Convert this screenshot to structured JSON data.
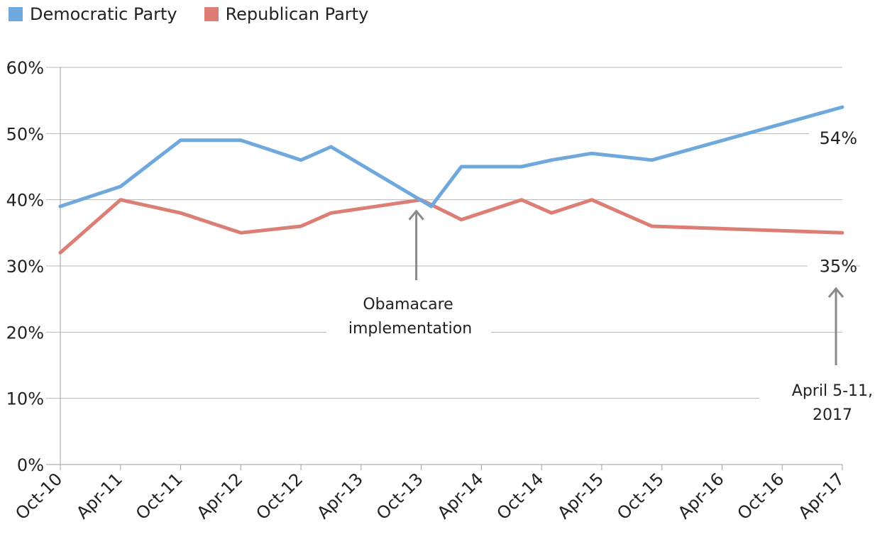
{
  "legend": {
    "items": [
      {
        "label": "Democratic Party",
        "color": "#6fa8dc"
      },
      {
        "label": "Republican Party",
        "color": "#dd7e76"
      }
    ]
  },
  "chart_data": {
    "type": "line",
    "x": [
      "Oct-10",
      "Apr-11",
      "Oct-11",
      "Apr-12",
      "Oct-12",
      "Apr-13",
      "Oct-13",
      "Apr-14",
      "Oct-14",
      "Apr-15",
      "Oct-15",
      "Apr-16",
      "Oct-16",
      "Apr-17"
    ],
    "ylim": [
      0,
      60
    ],
    "yticks": [
      "0%",
      "10%",
      "20%",
      "30%",
      "40%",
      "50%",
      "60%"
    ],
    "grid": true,
    "legend_position": "top-left",
    "series": [
      {
        "name": "Democratic Party",
        "color": "#6fa8dc",
        "points": [
          {
            "x": "Oct-10",
            "y": 39
          },
          {
            "x": "Apr-11",
            "y": 42
          },
          {
            "x": "Oct-11",
            "y": 49
          },
          {
            "x": "Apr-12",
            "y": 49
          },
          {
            "x": "Oct-12",
            "y": 46
          },
          {
            "x": "Jan-13",
            "y": 48
          },
          {
            "x": "Nov-13",
            "y": 39
          },
          {
            "x": "Feb-14",
            "y": 45
          },
          {
            "x": "Aug-14",
            "y": 45
          },
          {
            "x": "Nov-14",
            "y": 46
          },
          {
            "x": "Mar-15",
            "y": 47
          },
          {
            "x": "Sep-15",
            "y": 46
          },
          {
            "x": "Apr-17",
            "y": 54
          }
        ]
      },
      {
        "name": "Republican Party",
        "color": "#dd7e76",
        "points": [
          {
            "x": "Oct-10",
            "y": 32
          },
          {
            "x": "Apr-11",
            "y": 40
          },
          {
            "x": "Oct-11",
            "y": 38
          },
          {
            "x": "Apr-12",
            "y": 35
          },
          {
            "x": "Oct-12",
            "y": 36
          },
          {
            "x": "Jan-13",
            "y": 38
          },
          {
            "x": "Oct-13",
            "y": 40
          },
          {
            "x": "Feb-14",
            "y": 37
          },
          {
            "x": "Aug-14",
            "y": 40
          },
          {
            "x": "Nov-14",
            "y": 38
          },
          {
            "x": "Mar-15",
            "y": 40
          },
          {
            "x": "Sep-15",
            "y": 36
          },
          {
            "x": "Apr-17",
            "y": 35
          }
        ]
      }
    ],
    "end_labels": {
      "dem": "54%",
      "rep": "35%"
    },
    "annotations": [
      {
        "lines": [
          "Obamacare",
          "implementation"
        ],
        "target": {
          "x": "Oct-13",
          "y": 40
        }
      },
      {
        "lines": [
          "April 5-11,",
          "2017"
        ],
        "target": {
          "x": "Apr-17",
          "y": 35
        }
      }
    ]
  }
}
